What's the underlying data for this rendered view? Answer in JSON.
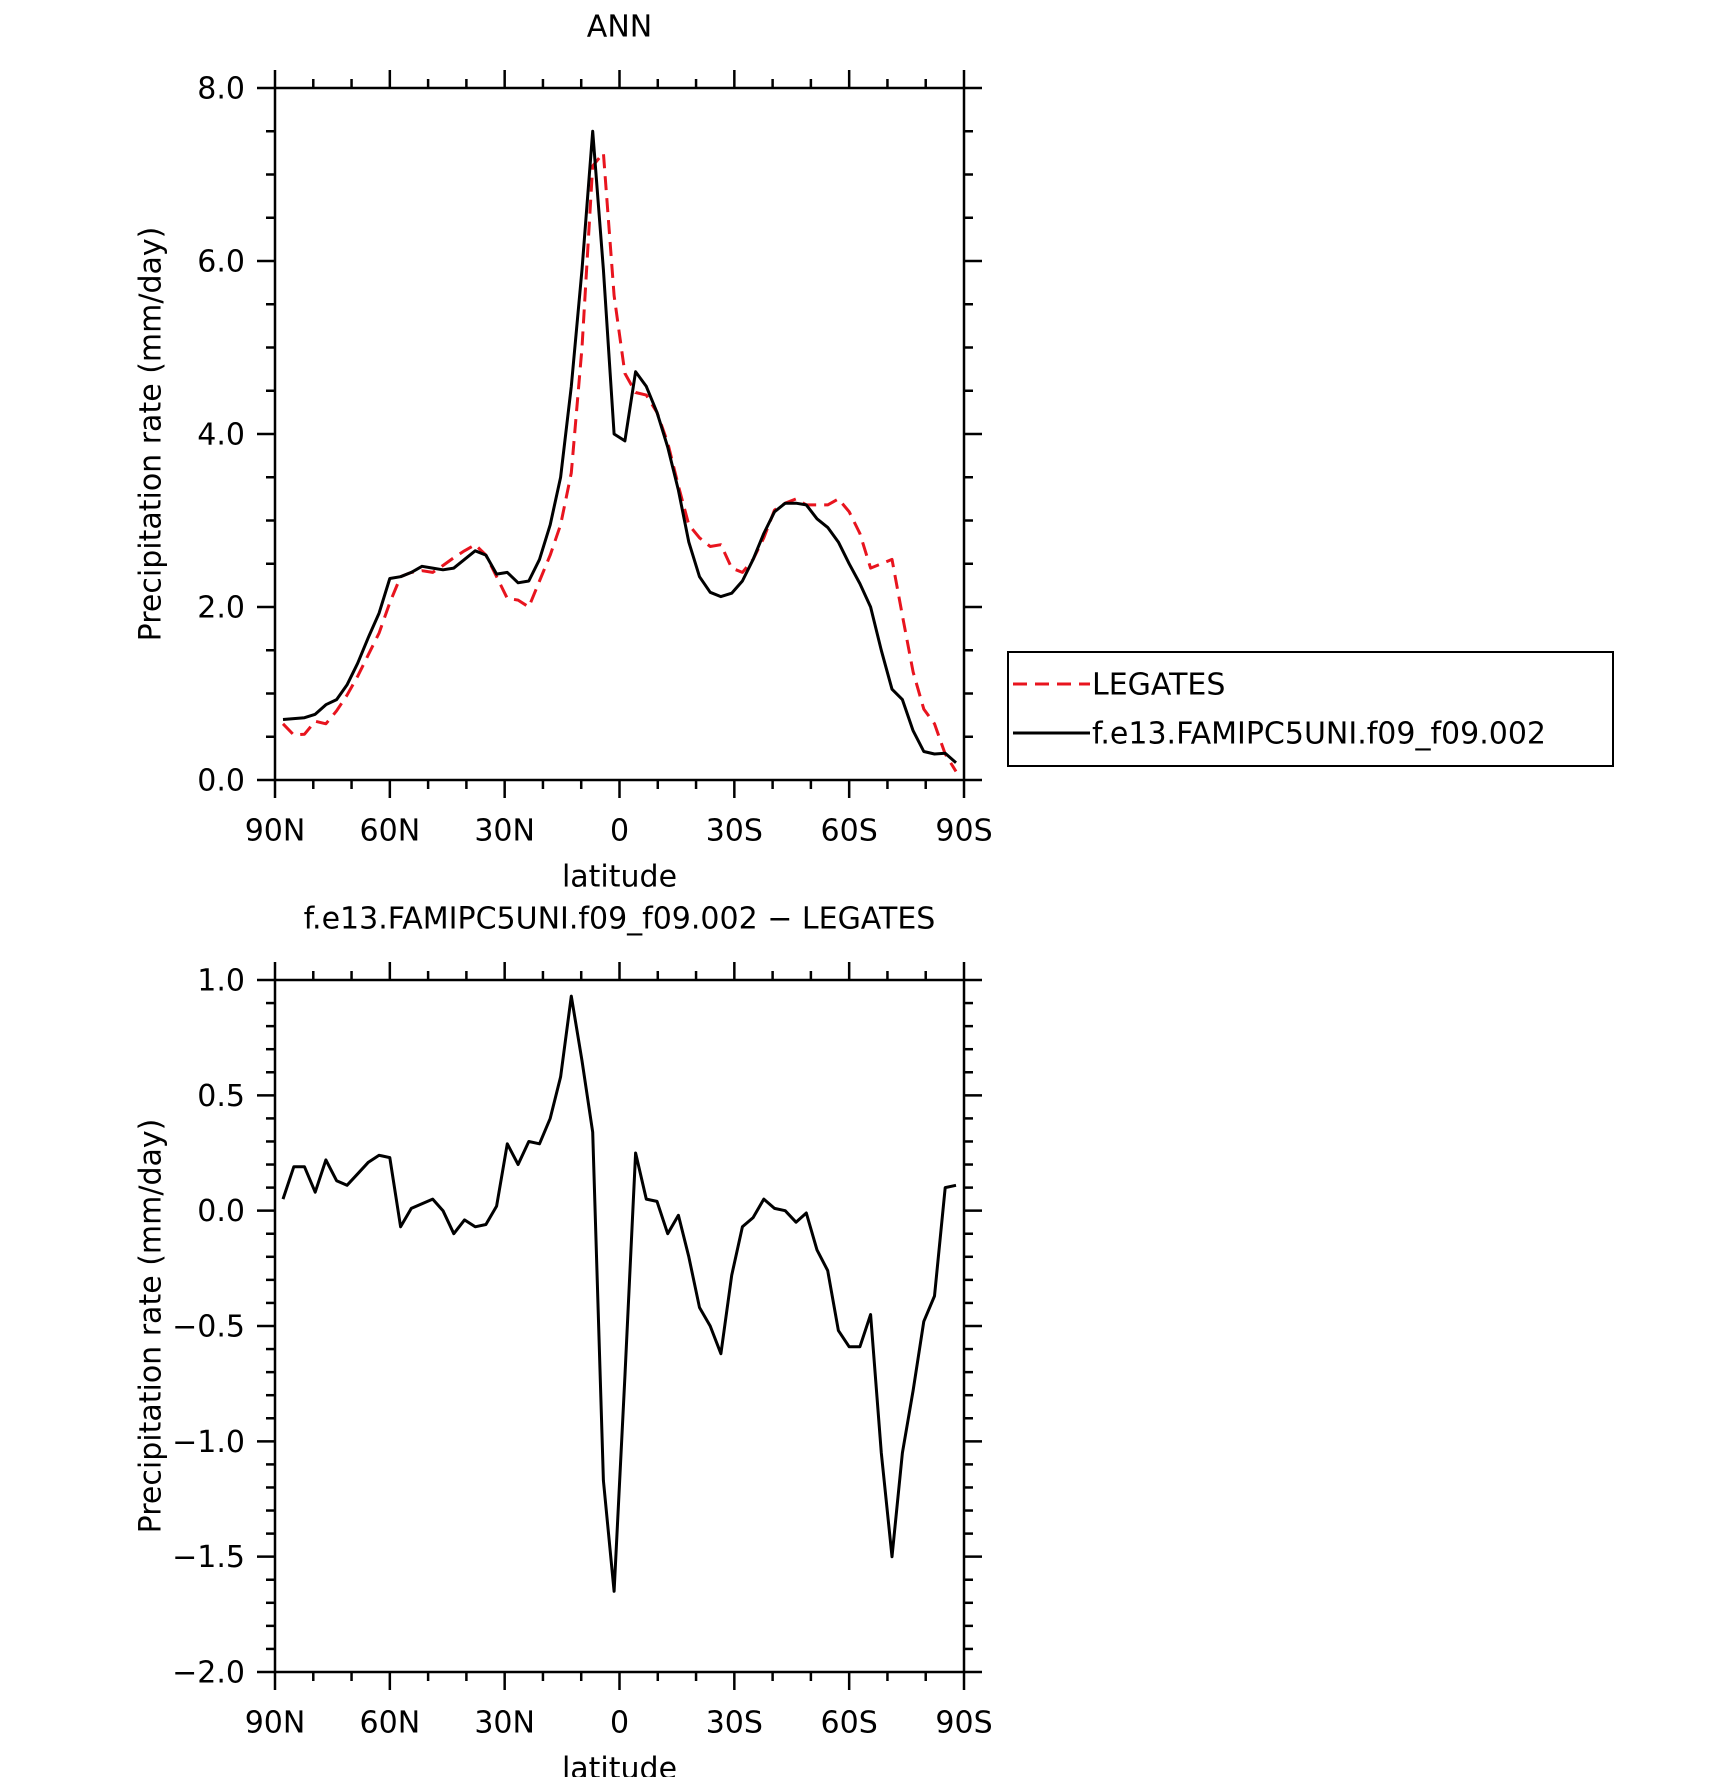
{
  "chart_data": [
    {
      "type": "line",
      "title": "ANN",
      "xlabel": "latitude",
      "ylabel": "Precipitation rate (mm/day)",
      "x": [
        87.9,
        85.1,
        82.3,
        79.5,
        76.7,
        73.9,
        71.2,
        68.4,
        65.6,
        62.8,
        60.0,
        57.2,
        54.4,
        51.6,
        48.8,
        46.1,
        43.3,
        40.5,
        37.7,
        34.9,
        32.1,
        29.3,
        26.5,
        23.7,
        20.9,
        18.1,
        15.4,
        12.6,
        9.8,
        7.0,
        4.2,
        1.4,
        -1.4,
        -4.2,
        -7.0,
        -9.8,
        -12.6,
        -15.4,
        -18.1,
        -20.9,
        -23.7,
        -26.5,
        -29.3,
        -32.1,
        -34.9,
        -37.7,
        -40.5,
        -43.3,
        -46.1,
        -48.8,
        -51.6,
        -54.4,
        -57.2,
        -60.0,
        -62.8,
        -65.6,
        -68.4,
        -71.2,
        -73.9,
        -76.7,
        -79.5,
        -82.3,
        -85.1,
        -87.9
      ],
      "series": [
        {
          "name": "LEGATES",
          "color": "#e8141e",
          "dashed": true,
          "values": [
            0.65,
            0.52,
            0.53,
            0.68,
            0.65,
            0.8,
            0.98,
            1.2,
            1.45,
            1.7,
            2.05,
            2.35,
            2.4,
            2.42,
            2.4,
            2.48,
            2.57,
            2.65,
            2.72,
            2.6,
            2.35,
            2.1,
            2.08,
            2.0,
            2.3,
            2.6,
            2.95,
            3.55,
            5.0,
            7.1,
            7.25,
            5.6,
            4.7,
            4.48,
            4.45,
            4.25,
            3.9,
            3.4,
            2.95,
            2.8,
            2.7,
            2.72,
            2.45,
            2.4,
            2.55,
            2.8,
            3.12,
            3.2,
            3.25,
            3.18,
            3.18,
            3.18,
            3.25,
            3.1,
            2.85,
            2.45,
            2.5,
            2.55,
            1.9,
            1.25,
            0.82,
            0.65,
            0.3,
            0.1
          ]
        },
        {
          "name": "f.e13.FAMIPC5UNI.f09_f09.002",
          "color": "#000000",
          "dashed": false,
          "values": [
            0.7,
            0.71,
            0.72,
            0.76,
            0.87,
            0.93,
            1.1,
            1.35,
            1.65,
            1.93,
            2.33,
            2.35,
            2.4,
            2.47,
            2.45,
            2.43,
            2.45,
            2.55,
            2.65,
            2.6,
            2.38,
            2.4,
            2.28,
            2.3,
            2.55,
            2.95,
            3.5,
            4.55,
            5.9,
            7.5,
            5.9,
            4.0,
            3.92,
            4.72,
            4.55,
            4.25,
            3.85,
            3.35,
            2.75,
            2.35,
            2.17,
            2.12,
            2.16,
            2.3,
            2.55,
            2.85,
            3.1,
            3.2,
            3.2,
            3.18,
            3.02,
            2.92,
            2.75,
            2.5,
            2.27,
            2.0,
            1.5,
            1.05,
            0.93,
            0.57,
            0.33,
            0.3,
            0.31,
            0.2
          ]
        }
      ],
      "xlim": [
        90,
        -90
      ],
      "xticks": [
        {
          "value": 90,
          "label": "90N"
        },
        {
          "value": 60,
          "label": "60N"
        },
        {
          "value": 30,
          "label": "30N"
        },
        0,
        {
          "value": -30,
          "label": "30S"
        },
        {
          "value": -60,
          "label": "60S"
        },
        {
          "value": -90,
          "label": "90S"
        }
      ],
      "ylim": [
        0,
        8
      ],
      "yticks": [
        {
          "value": 0,
          "label": "0.0"
        },
        {
          "value": 2,
          "label": "2.0"
        },
        {
          "value": 4,
          "label": "4.0"
        },
        {
          "value": 6,
          "label": "6.0"
        },
        {
          "value": 8,
          "label": "8.0"
        }
      ]
    },
    {
      "type": "line",
      "title": "f.e13.FAMIPC5UNI.f09_f09.002 − LEGATES",
      "xlabel": "latitude",
      "ylabel": "Precipitation rate (mm/day)",
      "x": [
        87.9,
        85.1,
        82.3,
        79.5,
        76.7,
        73.9,
        71.2,
        68.4,
        65.6,
        62.8,
        60.0,
        57.2,
        54.4,
        51.6,
        48.8,
        46.1,
        43.3,
        40.5,
        37.7,
        34.9,
        32.1,
        29.3,
        26.5,
        23.7,
        20.9,
        18.1,
        15.4,
        12.6,
        9.8,
        7.0,
        4.2,
        1.4,
        -1.4,
        -4.2,
        -7.0,
        -9.8,
        -12.6,
        -15.4,
        -18.1,
        -20.9,
        -23.7,
        -26.5,
        -29.3,
        -32.1,
        -34.9,
        -37.7,
        -40.5,
        -43.3,
        -46.1,
        -48.8,
        -51.6,
        -54.4,
        -57.2,
        -60.0,
        -62.8,
        -65.6,
        -68.4,
        -71.2,
        -73.9,
        -76.7,
        -79.5,
        -82.3,
        -85.1,
        -87.9
      ],
      "series": [
        {
          "color": "#000000",
          "dashed": false,
          "values": [
            0.05,
            0.19,
            0.19,
            0.08,
            0.22,
            0.13,
            0.11,
            0.16,
            0.21,
            0.24,
            0.23,
            -0.07,
            0.01,
            0.03,
            0.05,
            0.0,
            -0.1,
            -0.04,
            -0.07,
            -0.06,
            0.02,
            0.29,
            0.2,
            0.3,
            0.29,
            0.4,
            0.58,
            0.93,
            0.65,
            0.34,
            -1.17,
            -1.65,
            -0.72,
            0.25,
            0.05,
            0.04,
            -0.1,
            -0.02,
            -0.2,
            -0.42,
            -0.5,
            -0.62,
            -0.28,
            -0.07,
            -0.03,
            0.05,
            0.01,
            0.0,
            -0.05,
            -0.01,
            -0.17,
            -0.26,
            -0.52,
            -0.59,
            -0.59,
            -0.45,
            -1.05,
            -1.5,
            -1.05,
            -0.78,
            -0.48,
            -0.37,
            0.1,
            0.11
          ]
        }
      ],
      "xlim": [
        90,
        -90
      ],
      "xticks": [
        {
          "value": 90,
          "label": "90N"
        },
        {
          "value": 60,
          "label": "60N"
        },
        {
          "value": 30,
          "label": "30N"
        },
        0,
        {
          "value": -30,
          "label": "30S"
        },
        {
          "value": -60,
          "label": "60S"
        },
        {
          "value": -90,
          "label": "90S"
        }
      ],
      "ylim": [
        -2,
        1
      ],
      "yticks": [
        {
          "value": -2,
          "label": "−2.0"
        },
        {
          "value": -1.5,
          "label": "−1.5"
        },
        {
          "value": -1,
          "label": "−1.0"
        },
        {
          "value": -0.5,
          "label": "−0.5"
        },
        {
          "value": 0,
          "label": "0.0"
        },
        {
          "value": 0.5,
          "label": "0.5"
        },
        {
          "value": 1,
          "label": "1.0"
        }
      ]
    }
  ]
}
